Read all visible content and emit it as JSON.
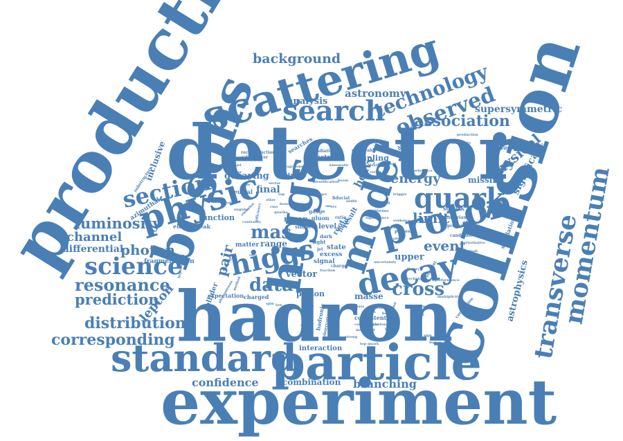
{
  "theme": {
    "word_color": "#4a7fb5",
    "background": "#ffffff"
  },
  "words": {
    "production": "production",
    "scattering": "scattering",
    "detector": "detector",
    "collision": "collision",
    "hadron": "hadron",
    "experiment": "experiment",
    "particle": "particle",
    "standard": "standard",
    "bosons": "bosons",
    "higgs_vertical": "higgs",
    "model": "model",
    "proton": "proton",
    "physic": "physic",
    "search": "search",
    "technology": "technology",
    "observed": "observed",
    "association": "association",
    "quark": "quark",
    "section": "section",
    "decay": "decay",
    "higgs": "higgs",
    "science": "science",
    "transverse": "transverse",
    "momentum": "momentum",
    "luminosity": "luminosity",
    "resonance": "resonance",
    "prediction": "prediction",
    "distribution": "distribution",
    "corresponding": "corresponding",
    "background": "background",
    "astronomy": "astronomy",
    "analysis": "analysis",
    "supersymmetric": "supersymmetric",
    "cross": "cross",
    "data": "data",
    "event": "event",
    "limit": "limit",
    "energy": "energy",
    "physical": "physical",
    "significant": "significant",
    "mas": "mas",
    "pair": "pair",
    "photon": "photon",
    "differential": "differential",
    "channel": "channel",
    "lepton": "lepton",
    "confidence": "confidence",
    "branching": "branching",
    "combination": "combination",
    "astrophysics": "astrophysics",
    "inclusive": "inclusive",
    "decaying": "decaying",
    "final": "final",
    "heavy": "heavy",
    "upper": "upper",
    "missing": "missing",
    "masse": "masse",
    "vector": "vector",
    "interaction": "interaction",
    "fragmentation": "fragmentation",
    "azimuthal": "azimuthal",
    "range": "range",
    "muon": "muon",
    "coupling": "coupling",
    "electron": "electron",
    "function": "function",
    "parton": "parton",
    "collider": "collider",
    "state": "state",
    "level": "level",
    "result": "result",
    "root": "root",
    "field": "field",
    "electroweak": "electroweak",
    "gluon": "gluon",
    "signal": "signal",
    "excess": "excess",
    "charged": "charged",
    "expectation": "expectation",
    "consistent": "consistent",
    "hadronic": "hadronic",
    "deviation": "deviation",
    "produced": "produced",
    "simulation": "simulation",
    "centre": "centre",
    "neutral": "neutral",
    "searches": "searches",
    "reconstruction": "reconstruction",
    "calorimeter": "calorimeter",
    "radiation": "radiation",
    "observable": "observable",
    "invariant": "invariant",
    "candidate": "candidate",
    "properties": "properties",
    "correlation": "correlation",
    "substructure": "substructure",
    "matter": "matter",
    "light": "light",
    "dark": "dark",
    "fiducial": "fiducial",
    "squark": "squark",
    "process": "process",
    "gauge": "gauge",
    "single": "single",
    "charge": "charge",
    "resonant": "resonant",
    "ratio": "ratio",
    "rate": "rate",
    "jet": "jet",
    "sm": "sm",
    "tev": "tev",
    "gev": "gev",
    "top": "top",
    "lhc": "lhc",
    "flavor": "flavor",
    "emission": "emission",
    "efficiency": "efficiency",
    "cms": "cms",
    "atlas": "atlas",
    "boson": "boson",
    "quarks": "quarks",
    "scale": "scale",
    "order": "order",
    "evidence": "evidence",
    "perturbative": "perturbative",
    "technique": "technique",
    "performance": "performance",
    "multiplicity": "multiplicity",
    "hypothetical": "hypothetical",
    "phenomenon": "phenomenon",
    "contribution": "contribution",
    "observation": "observation",
    "measured": "measured",
    "method": "method",
    "calculation": "calculation",
    "uncertainty": "uncertainty",
    "modification": "modification",
    "interference": "interference",
    "spectrum": "spectrum",
    "polarization": "polarization",
    "kinematic": "kinematic",
    "agreement": "agreement",
    "dijet": "dijet",
    "sector": "sector",
    "width": "width",
    "mixing": "mixing",
    "lifetime": "lifetime",
    "significance": "significance",
    "theory": "theory",
    "production_small": "production",
    "sensitivity": "sensitivity",
    "fraction": "fraction",
    "rapidity": "rapidity",
    "centrality": "centrality",
    "angular": "angular",
    "nuclear": "nuclear",
    "identification": "identification",
    "beam": "beam",
    "vertex": "vertex",
    "track": "track",
    "trigger": "trigger",
    "sample": "sample",
    "mode": "mode",
    "weak": "weak",
    "new": "new",
    "spin": "spin",
    "low": "low",
    "high": "high",
    "total": "total",
    "mass_small": "mass",
    "peak": "peak",
    "bound": "bound",
    "decays": "decays",
    "photons": "photons",
    "pairs": "pairs",
    "leptons": "leptons",
    "jets": "jets",
    "muons": "muons",
    "strong": "strong",
    "sign": "sign",
    "lepton_small": "lepton",
    "top_quark": "top quark"
  }
}
